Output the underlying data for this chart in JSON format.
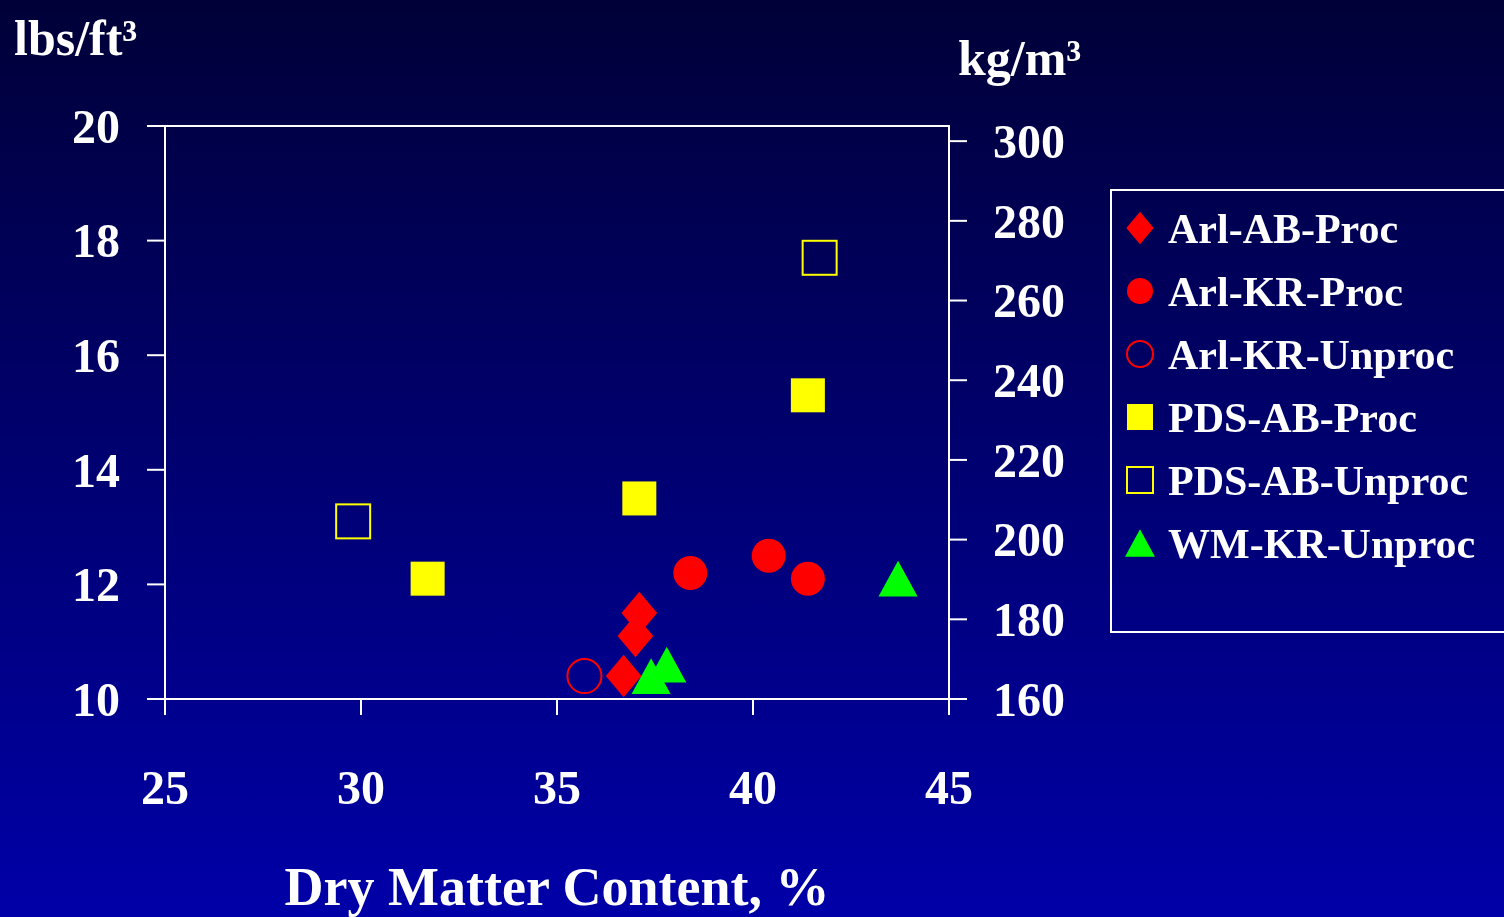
{
  "chart_data": {
    "type": "scatter",
    "xlabel": "Dry Matter Content, %",
    "ylabel": "lbs/ft³",
    "y2label": "kg/m³",
    "xlim": [
      25,
      45
    ],
    "xticks": [
      25,
      30,
      35,
      40,
      45
    ],
    "ylim": [
      10,
      20
    ],
    "yticks": [
      10,
      12,
      14,
      16,
      18,
      20
    ],
    "y2lim": [
      160,
      303.8
    ],
    "y2ticks": [
      160,
      180,
      200,
      220,
      240,
      260,
      280,
      300
    ],
    "grid": false,
    "legend": "right",
    "series": [
      {
        "name": "Arl-AB-Proc",
        "color": "#ff0000",
        "marker": "diamond",
        "x": [
          37.1,
          37.0,
          36.7
        ],
        "values": [
          11.5,
          11.1,
          10.4
        ]
      },
      {
        "name": "Arl-KR-Proc",
        "color": "#ff0000",
        "marker": "circle",
        "x": [
          38.4,
          40.4,
          41.4
        ],
        "values": [
          12.2,
          12.5,
          12.1
        ]
      },
      {
        "name": "Arl-KR-Unproc",
        "color": "#ff0000",
        "marker": "circle",
        "x": [
          35.7
        ],
        "values": [
          10.4
        ]
      },
      {
        "name": "PDS-AB-Proc",
        "color": "#ffff00",
        "marker": "square",
        "x": [
          31.7,
          37.1,
          41.4
        ],
        "values": [
          12.1,
          13.5,
          15.3
        ]
      },
      {
        "name": "PDS-AB-Unproc",
        "color": "#ffff00",
        "marker": "square",
        "x": [
          29.8,
          41.7
        ],
        "values": [
          13.1,
          17.7
        ]
      },
      {
        "name": "WM-KR-Unproc",
        "color": "#00ff00",
        "marker": "triangle",
        "x": [
          37.4,
          37.8,
          43.7
        ],
        "values": [
          10.4,
          10.6,
          12.1
        ]
      }
    ]
  }
}
